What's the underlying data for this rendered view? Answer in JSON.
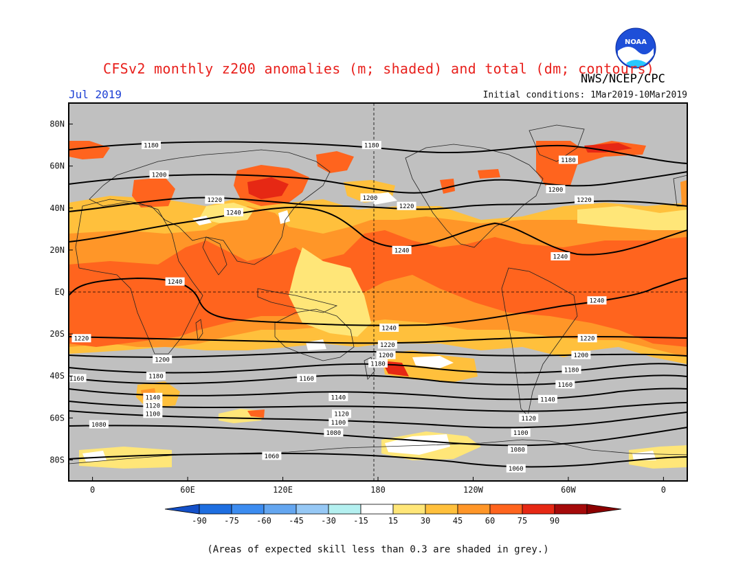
{
  "header": {
    "title": "CFSv2 monthly z200 anomalies (m; shaded) and total (dm; contours)",
    "agency": "NWS/NCEP/CPC",
    "month": "Jul 2019",
    "initial_conditions": "Initial conditions: 1Mar2019-10Mar2019",
    "logo_text": "NOAA"
  },
  "map": {
    "lat_labels": [
      "80N",
      "60N",
      "40N",
      "20N",
      "EQ",
      "20S",
      "40S",
      "60S",
      "80S"
    ],
    "lon_labels": [
      "0",
      "60E",
      "120E",
      "180",
      "120W",
      "60W",
      "0"
    ],
    "lat_values": [
      80,
      60,
      40,
      20,
      0,
      -20,
      -40,
      -60,
      -80
    ],
    "lon_values": [
      0,
      60,
      120,
      180,
      240,
      300,
      360
    ],
    "lon_range": [
      -15,
      375
    ],
    "lat_range": [
      -90,
      90
    ],
    "reference_lines": [
      "equator",
      "dateline"
    ],
    "masked_color": "#c0c0c0",
    "contour_labels": [
      {
        "text": "1180",
        "lon": 37,
        "lat": 70
      },
      {
        "text": "1180",
        "lon": 176,
        "lat": 70
      },
      {
        "text": "1180",
        "lon": 300,
        "lat": 63
      },
      {
        "text": "1200",
        "lon": 42,
        "lat": 56
      },
      {
        "text": "1200",
        "lon": 175,
        "lat": 45
      },
      {
        "text": "1200",
        "lon": 292,
        "lat": 49
      },
      {
        "text": "1220",
        "lon": 77,
        "lat": 44
      },
      {
        "text": "1220",
        "lon": 198,
        "lat": 41
      },
      {
        "text": "1220",
        "lon": 310,
        "lat": 44
      },
      {
        "text": "1240",
        "lon": 89,
        "lat": 38
      },
      {
        "text": "1240",
        "lon": 195,
        "lat": 20
      },
      {
        "text": "1240",
        "lon": 295,
        "lat": 17
      },
      {
        "text": "1240",
        "lon": 52,
        "lat": 5
      },
      {
        "text": "1240",
        "lon": 318,
        "lat": -4
      },
      {
        "text": "1240",
        "lon": 187,
        "lat": -17
      },
      {
        "text": "1220",
        "lon": -7,
        "lat": -22
      },
      {
        "text": "1220",
        "lon": 186,
        "lat": -25
      },
      {
        "text": "1220",
        "lon": 312,
        "lat": -22
      },
      {
        "text": "1200",
        "lon": 44,
        "lat": -32
      },
      {
        "text": "1200",
        "lon": 185,
        "lat": -30
      },
      {
        "text": "1200",
        "lon": 308,
        "lat": -30
      },
      {
        "text": "1180",
        "lon": 180,
        "lat": -34
      },
      {
        "text": "1180",
        "lon": 40,
        "lat": -40
      },
      {
        "text": "1180",
        "lon": 302,
        "lat": -37
      },
      {
        "text": "1160",
        "lon": 135,
        "lat": -41
      },
      {
        "text": "1160",
        "lon": 298,
        "lat": -44
      },
      {
        "text": "1160",
        "lon": -10,
        "lat": -41
      },
      {
        "text": "1140",
        "lon": 38,
        "lat": -50
      },
      {
        "text": "1140",
        "lon": 155,
        "lat": -50
      },
      {
        "text": "1140",
        "lon": 287,
        "lat": -51
      },
      {
        "text": "1120",
        "lon": 38,
        "lat": -54
      },
      {
        "text": "1120",
        "lon": 157,
        "lat": -58
      },
      {
        "text": "1120",
        "lon": 275,
        "lat": -60
      },
      {
        "text": "1100",
        "lon": 38,
        "lat": -58
      },
      {
        "text": "1100",
        "lon": 155,
        "lat": -62
      },
      {
        "text": "1100",
        "lon": 270,
        "lat": -67
      },
      {
        "text": "1080",
        "lon": 4,
        "lat": -63
      },
      {
        "text": "1080",
        "lon": 152,
        "lat": -67
      },
      {
        "text": "1080",
        "lon": 268,
        "lat": -75
      },
      {
        "text": "1060",
        "lon": 113,
        "lat": -78
      },
      {
        "text": "1060",
        "lon": 267,
        "lat": -84
      }
    ]
  },
  "colorbar": {
    "ticks": [
      "-90",
      "-75",
      "-60",
      "-45",
      "-30",
      "-15",
      "15",
      "30",
      "45",
      "60",
      "75",
      "90"
    ],
    "colors": [
      "#1e6ee0",
      "#3c8cf0",
      "#64a6f0",
      "#96c8f5",
      "#b4f0f0",
      "#ffffff",
      "#ffe678",
      "#ffc03c",
      "#ff9628",
      "#ff641e",
      "#e62814",
      "#a50a0a"
    ],
    "end_low_color": "#1450c8",
    "end_high_color": "#8c0000"
  },
  "footnote": "(Areas of expected skill less than 0.3 are shaded in grey.)"
}
